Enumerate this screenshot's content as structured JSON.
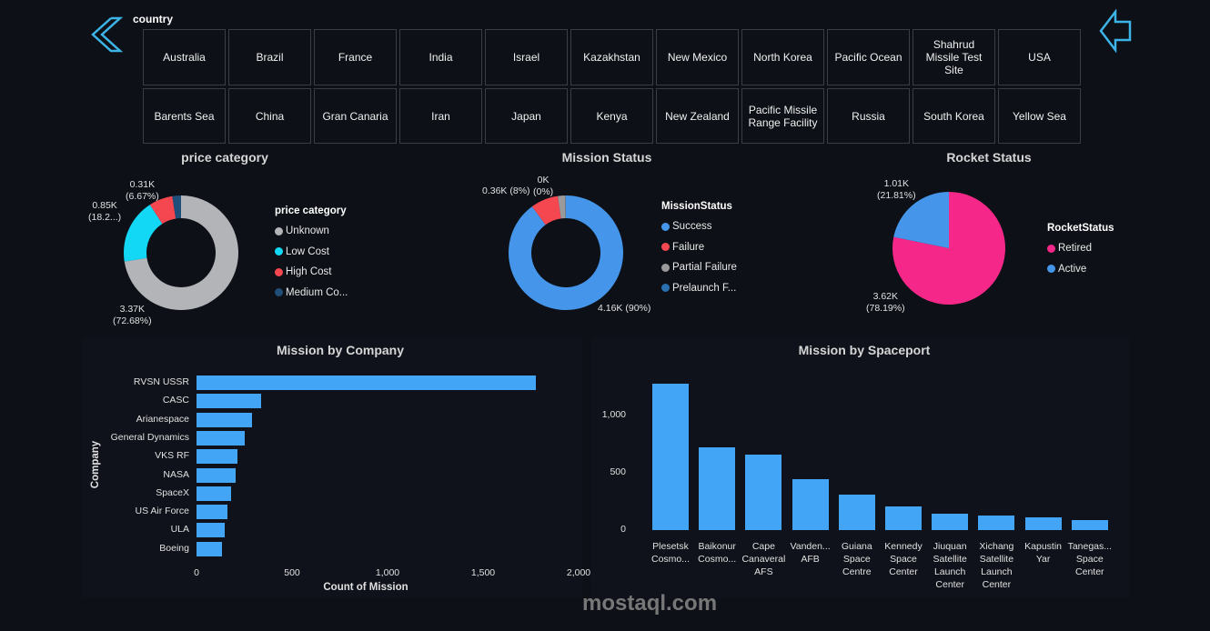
{
  "slicer": {
    "title": "country",
    "items": [
      "Australia",
      "Brazil",
      "France",
      "India",
      "Israel",
      "Kazakhstan",
      "New Mexico",
      "North Korea",
      "Pacific Ocean",
      "Shahrud Missile Test Site",
      "USA",
      "Barents Sea",
      "China",
      "Gran Canaria",
      "Iran",
      "Japan",
      "Kenya",
      "New Zealand",
      "Pacific Missile Range Facility",
      "Russia",
      "South Korea",
      "Yellow Sea"
    ]
  },
  "nav": {
    "back_icon": "double-chevron-left-icon",
    "prev_icon": "arrow-left-icon"
  },
  "watermark": "mostaql.com",
  "chart_data": [
    {
      "type": "pie",
      "variant": "donut",
      "title": "price category",
      "legend_title": "price category",
      "legend_position": "right",
      "slices": [
        {
          "name": "Unknown",
          "value": 3370,
          "pct": 72.68,
          "label_value": "3.37K",
          "label_pct": "(72.68%)",
          "color": "#b3b4b8"
        },
        {
          "name": "Low Cost",
          "value": 850,
          "pct": 18.2,
          "label_value": "0.85K",
          "label_pct": "(18.2...)",
          "color": "#12d8f5"
        },
        {
          "name": "High Cost",
          "value": 310,
          "pct": 6.67,
          "label_value": "0.31K",
          "label_pct": "(6.67%)",
          "color": "#f5474f"
        },
        {
          "name": "Medium Co...",
          "value": 114,
          "pct": 2.45,
          "color": "#1f4e79"
        }
      ]
    },
    {
      "type": "pie",
      "variant": "donut",
      "title": "Mission Status",
      "legend_title": "MissionStatus",
      "legend_position": "right",
      "slices": [
        {
          "name": "Success",
          "value": 4160,
          "pct": 90,
          "label_value": "4.16K (90%)",
          "color": "#4596ea"
        },
        {
          "name": "Failure",
          "value": 360,
          "pct": 8,
          "label_value": "0.36K (8%)",
          "color": "#f5474f"
        },
        {
          "name": "Partial Failure",
          "value": 100,
          "pct": 2,
          "color": "#9a9a9a"
        },
        {
          "name": "Prelaunch F...",
          "value": 4,
          "pct": 0,
          "label_value": "0K",
          "label_pct": "(0%)",
          "color": "#2a6fb0"
        }
      ]
    },
    {
      "type": "pie",
      "title": "Rocket Status",
      "legend_title": "RocketStatus",
      "legend_position": "right",
      "slices": [
        {
          "name": "Retired",
          "value": 3620,
          "pct": 78.19,
          "label_value": "3.62K",
          "label_pct": "(78.19%)",
          "color": "#f5288a"
        },
        {
          "name": "Active",
          "value": 1010,
          "pct": 21.81,
          "label_value": "1.01K",
          "label_pct": "(21.81%)",
          "color": "#4596ea"
        }
      ]
    },
    {
      "type": "bar",
      "orientation": "horizontal",
      "title": "Mission by Company",
      "xlabel": "Count of Mission",
      "ylabel": "Company",
      "xlim": [
        0,
        2000
      ],
      "xticks": [
        "0",
        "500",
        "1,000",
        "1,500",
        "2,000"
      ],
      "color": "#42a5f5",
      "categories": [
        "RVSN USSR",
        "CASC",
        "Arianespace",
        "General Dynamics",
        "VKS RF",
        "NASA",
        "SpaceX",
        "US Air Force",
        "ULA",
        "Boeing"
      ],
      "values": [
        1777,
        338,
        290,
        251,
        216,
        203,
        182,
        161,
        148,
        131
      ]
    },
    {
      "type": "bar",
      "orientation": "vertical",
      "title": "Mission by Spaceport",
      "xlabel": "",
      "ylabel": "",
      "ylim": [
        0,
        1300
      ],
      "yticks": [
        "0",
        "500",
        "1,000"
      ],
      "color": "#42a5f5",
      "categories": [
        "Plesetsk Cosmo...",
        "Baikonur Cosmo...",
        "Cape Canaveral AFS",
        "Vanden... AFB",
        "Guiana Space Centre",
        "Kennedy Space Center",
        "Jiuquan Satellite Launch Center",
        "Xichang Satellite Launch Center",
        "Kapustin Yar",
        "Tanegas... Space Center"
      ],
      "values": [
        1278,
        722,
        658,
        444,
        310,
        206,
        143,
        127,
        111,
        87
      ]
    }
  ]
}
